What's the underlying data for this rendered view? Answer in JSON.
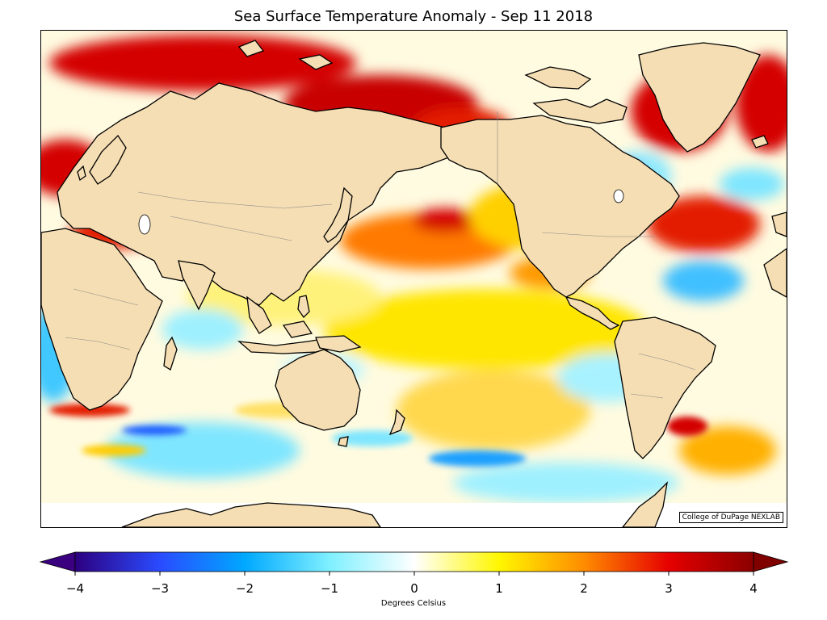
{
  "title": "Sea Surface Temperature Anomaly - Sep 11 2018",
  "credit": "College of DuPage NEXLAB",
  "colorbar": {
    "label": "Degrees Celsius",
    "ticks": [
      "−4",
      "−3",
      "−2",
      "−1",
      "0",
      "1",
      "2",
      "3",
      "4"
    ],
    "min": -4,
    "max": 4,
    "colors": [
      "#2c0080",
      "#2a4bff",
      "#00a8ff",
      "#7ff0ff",
      "#ffffff",
      "#fff700",
      "#ff8c00",
      "#e60000",
      "#8b0000"
    ]
  },
  "land_color": "#f5deb3"
}
